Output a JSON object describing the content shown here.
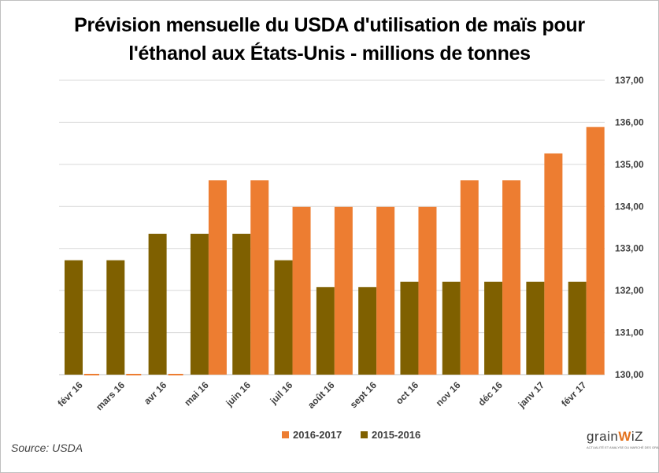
{
  "chart_data": {
    "type": "bar",
    "title_line1": "Prévision mensuelle du USDA d'utilisation de maïs pour",
    "title_line2": "l'éthanol aux États-Unis - millions de tonnes",
    "categories": [
      "févr 16",
      "mars 16",
      "avr 16",
      "mai 16",
      "juin 16",
      "juil 16",
      "août 16",
      "sept 16",
      "oct 16",
      "nov 16",
      "déc 16",
      "janv 17",
      "févr 17"
    ],
    "series": [
      {
        "name": "2015-2016",
        "color": "#7f6000",
        "values": [
          132.72,
          132.72,
          133.35,
          133.35,
          133.35,
          132.72,
          132.08,
          132.08,
          132.21,
          132.21,
          132.21,
          132.21,
          132.21
        ]
      },
      {
        "name": "2016-2017",
        "color": "#ed7d31",
        "values": [
          130,
          130,
          130,
          134.62,
          134.62,
          133.99,
          133.99,
          133.99,
          133.99,
          134.62,
          134.62,
          135.26,
          135.89
        ]
      }
    ],
    "y_axis": {
      "position": "right",
      "ylim": [
        130,
        137
      ],
      "ticks": [
        "130,00",
        "131,00",
        "132,00",
        "133,00",
        "134,00",
        "135,00",
        "136,00",
        "137,00"
      ]
    },
    "legend": [
      "2016-2017",
      "2015-2016"
    ],
    "grid": true
  },
  "source": "Source: USDA",
  "logo": {
    "text_start": "grain",
    "text_accent": "W",
    "text_end": "iZ",
    "tagline": "ACTUALITÉ ET ANALYSE DU MARCHÉ DES GRAINS"
  }
}
